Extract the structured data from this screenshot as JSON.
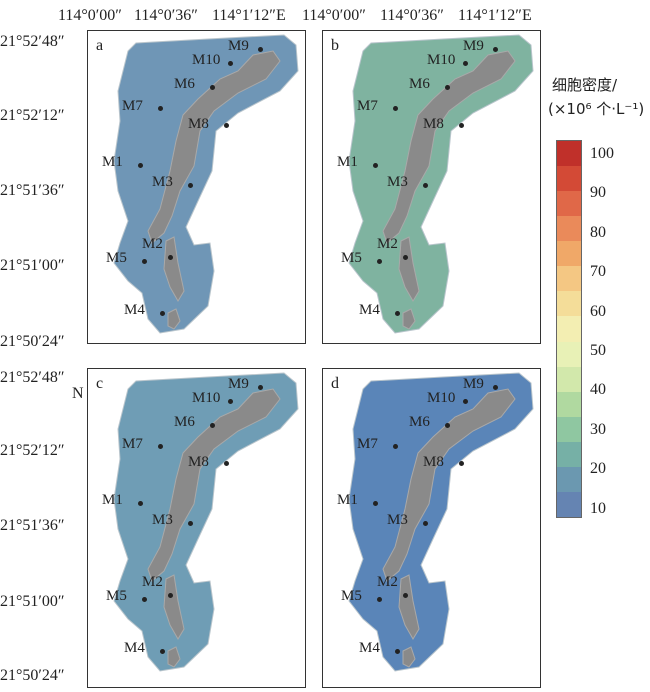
{
  "top_axis": [
    "114°0′00″",
    "114°0′36″",
    "114°1′12″E",
    "114°0′00″",
    "114°0′36″",
    "114°1′12″E"
  ],
  "left_axis_top": [
    "21°52′48″",
    "21°52′12″",
    "21°51′36″",
    "21°51′00″",
    "21°50′24″"
  ],
  "left_axis_bottom": [
    "21°52′48″",
    "N",
    "21°52′12″",
    "21°51′36″",
    "21°51′00″",
    "21°50′24″"
  ],
  "panels": [
    {
      "letter": "a",
      "fill": "#6f96b6"
    },
    {
      "letter": "b",
      "fill": "#7fb3a0"
    },
    {
      "letter": "c",
      "fill": "#6f9db5"
    },
    {
      "letter": "d",
      "fill": "#5a85b8"
    }
  ],
  "island_color": "#8a8a8a",
  "sites": [
    "M9",
    "M10",
    "M6",
    "M7",
    "M8",
    "M1",
    "M3",
    "M2",
    "M5",
    "M4"
  ],
  "legend": {
    "title_line1": "细胞密度/",
    "title_line2": "(×10⁶ 个·L⁻¹)",
    "ticks": [
      "100",
      "90",
      "80",
      "70",
      "60",
      "50",
      "40",
      "30",
      "20",
      "10"
    ],
    "colors": [
      "#c0302a",
      "#d34a36",
      "#e06848",
      "#ea8a5a",
      "#f0a868",
      "#f4c783",
      "#f4dd99",
      "#f3eeb2",
      "#e8f1b6",
      "#d2e8ab",
      "#b0d9a0",
      "#8fc7a1",
      "#76b0a6",
      "#6b98b0",
      "#6584b2"
    ]
  }
}
